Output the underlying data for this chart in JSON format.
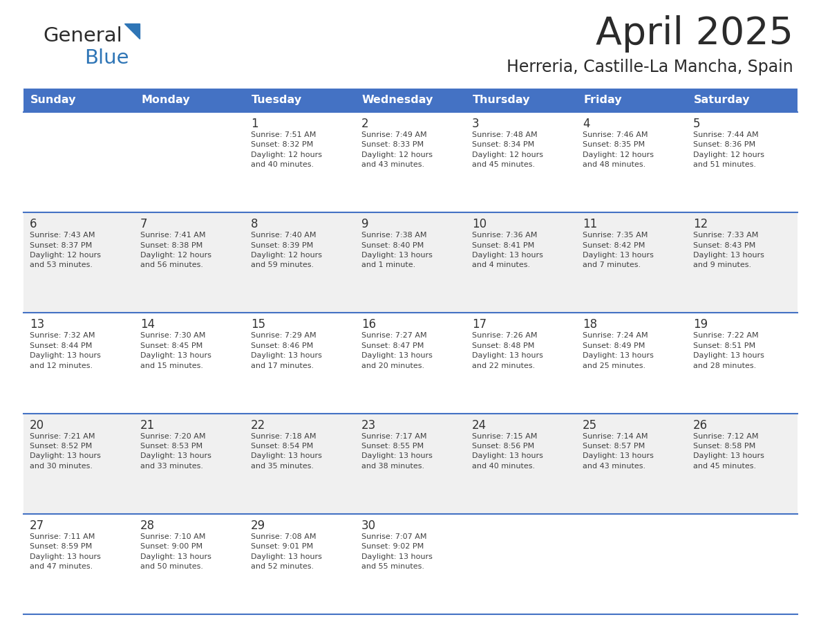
{
  "title": "April 2025",
  "subtitle": "Herreria, Castille-La Mancha, Spain",
  "header_color": "#4472C4",
  "header_text_color": "#FFFFFF",
  "days_of_week": [
    "Sunday",
    "Monday",
    "Tuesday",
    "Wednesday",
    "Thursday",
    "Friday",
    "Saturday"
  ],
  "weeks": [
    [
      {
        "day": null,
        "info": null
      },
      {
        "day": null,
        "info": null
      },
      {
        "day": "1",
        "info": "Sunrise: 7:51 AM\nSunset: 8:32 PM\nDaylight: 12 hours\nand 40 minutes."
      },
      {
        "day": "2",
        "info": "Sunrise: 7:49 AM\nSunset: 8:33 PM\nDaylight: 12 hours\nand 43 minutes."
      },
      {
        "day": "3",
        "info": "Sunrise: 7:48 AM\nSunset: 8:34 PM\nDaylight: 12 hours\nand 45 minutes."
      },
      {
        "day": "4",
        "info": "Sunrise: 7:46 AM\nSunset: 8:35 PM\nDaylight: 12 hours\nand 48 minutes."
      },
      {
        "day": "5",
        "info": "Sunrise: 7:44 AM\nSunset: 8:36 PM\nDaylight: 12 hours\nand 51 minutes."
      }
    ],
    [
      {
        "day": "6",
        "info": "Sunrise: 7:43 AM\nSunset: 8:37 PM\nDaylight: 12 hours\nand 53 minutes."
      },
      {
        "day": "7",
        "info": "Sunrise: 7:41 AM\nSunset: 8:38 PM\nDaylight: 12 hours\nand 56 minutes."
      },
      {
        "day": "8",
        "info": "Sunrise: 7:40 AM\nSunset: 8:39 PM\nDaylight: 12 hours\nand 59 minutes."
      },
      {
        "day": "9",
        "info": "Sunrise: 7:38 AM\nSunset: 8:40 PM\nDaylight: 13 hours\nand 1 minute."
      },
      {
        "day": "10",
        "info": "Sunrise: 7:36 AM\nSunset: 8:41 PM\nDaylight: 13 hours\nand 4 minutes."
      },
      {
        "day": "11",
        "info": "Sunrise: 7:35 AM\nSunset: 8:42 PM\nDaylight: 13 hours\nand 7 minutes."
      },
      {
        "day": "12",
        "info": "Sunrise: 7:33 AM\nSunset: 8:43 PM\nDaylight: 13 hours\nand 9 minutes."
      }
    ],
    [
      {
        "day": "13",
        "info": "Sunrise: 7:32 AM\nSunset: 8:44 PM\nDaylight: 13 hours\nand 12 minutes."
      },
      {
        "day": "14",
        "info": "Sunrise: 7:30 AM\nSunset: 8:45 PM\nDaylight: 13 hours\nand 15 minutes."
      },
      {
        "day": "15",
        "info": "Sunrise: 7:29 AM\nSunset: 8:46 PM\nDaylight: 13 hours\nand 17 minutes."
      },
      {
        "day": "16",
        "info": "Sunrise: 7:27 AM\nSunset: 8:47 PM\nDaylight: 13 hours\nand 20 minutes."
      },
      {
        "day": "17",
        "info": "Sunrise: 7:26 AM\nSunset: 8:48 PM\nDaylight: 13 hours\nand 22 minutes."
      },
      {
        "day": "18",
        "info": "Sunrise: 7:24 AM\nSunset: 8:49 PM\nDaylight: 13 hours\nand 25 minutes."
      },
      {
        "day": "19",
        "info": "Sunrise: 7:22 AM\nSunset: 8:51 PM\nDaylight: 13 hours\nand 28 minutes."
      }
    ],
    [
      {
        "day": "20",
        "info": "Sunrise: 7:21 AM\nSunset: 8:52 PM\nDaylight: 13 hours\nand 30 minutes."
      },
      {
        "day": "21",
        "info": "Sunrise: 7:20 AM\nSunset: 8:53 PM\nDaylight: 13 hours\nand 33 minutes."
      },
      {
        "day": "22",
        "info": "Sunrise: 7:18 AM\nSunset: 8:54 PM\nDaylight: 13 hours\nand 35 minutes."
      },
      {
        "day": "23",
        "info": "Sunrise: 7:17 AM\nSunset: 8:55 PM\nDaylight: 13 hours\nand 38 minutes."
      },
      {
        "day": "24",
        "info": "Sunrise: 7:15 AM\nSunset: 8:56 PM\nDaylight: 13 hours\nand 40 minutes."
      },
      {
        "day": "25",
        "info": "Sunrise: 7:14 AM\nSunset: 8:57 PM\nDaylight: 13 hours\nand 43 minutes."
      },
      {
        "day": "26",
        "info": "Sunrise: 7:12 AM\nSunset: 8:58 PM\nDaylight: 13 hours\nand 45 minutes."
      }
    ],
    [
      {
        "day": "27",
        "info": "Sunrise: 7:11 AM\nSunset: 8:59 PM\nDaylight: 13 hours\nand 47 minutes."
      },
      {
        "day": "28",
        "info": "Sunrise: 7:10 AM\nSunset: 9:00 PM\nDaylight: 13 hours\nand 50 minutes."
      },
      {
        "day": "29",
        "info": "Sunrise: 7:08 AM\nSunset: 9:01 PM\nDaylight: 13 hours\nand 52 minutes."
      },
      {
        "day": "30",
        "info": "Sunrise: 7:07 AM\nSunset: 9:02 PM\nDaylight: 13 hours\nand 55 minutes."
      },
      {
        "day": null,
        "info": null
      },
      {
        "day": null,
        "info": null
      },
      {
        "day": null,
        "info": null
      }
    ]
  ],
  "bg_color_white": "#FFFFFF",
  "bg_color_gray": "#F0F0F0",
  "cell_text_color": "#404040",
  "day_num_color": "#333333",
  "divider_color": "#4472C4",
  "logo_color_general": "#2B2B2B",
  "logo_color_blue": "#2E75B6",
  "fig_width": 11.88,
  "fig_height": 9.18,
  "dpi": 100
}
